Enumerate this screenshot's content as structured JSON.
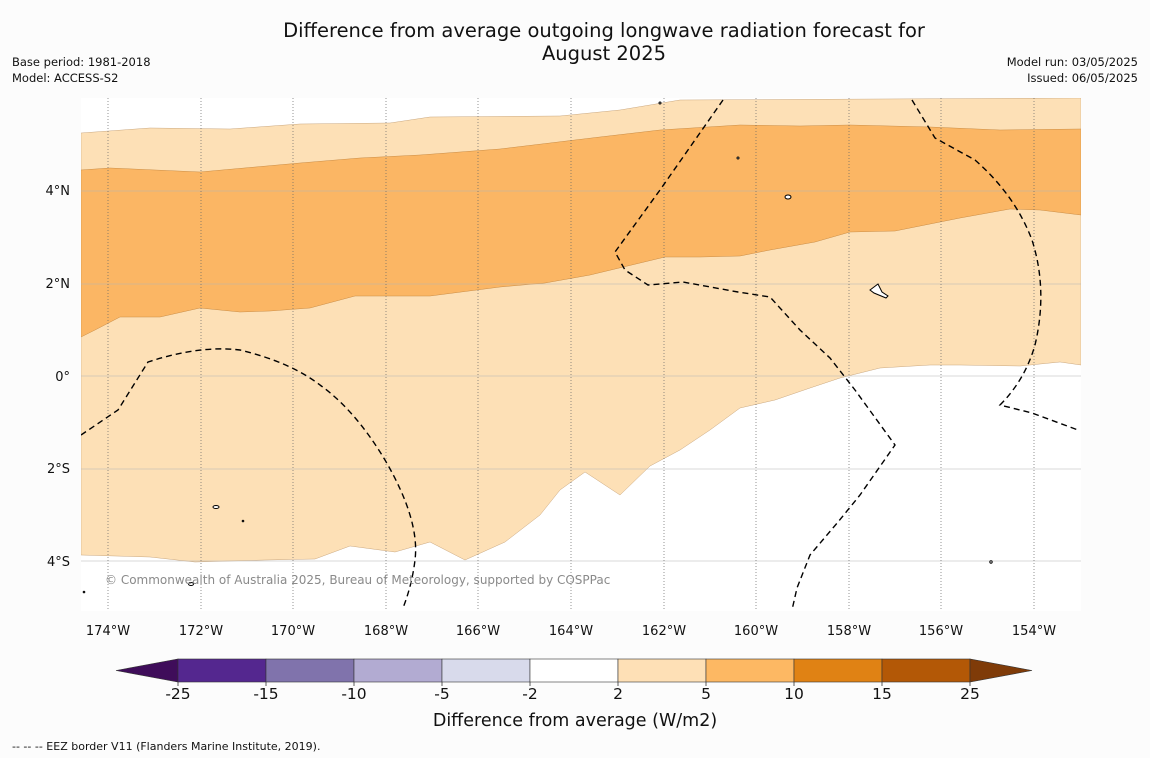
{
  "title": {
    "line1": "Difference from average outgoing longwave radiation forecast for",
    "line2": "August 2025"
  },
  "meta_left": {
    "base_period": "Base period: 1981-2018",
    "model": "Model: ACCESS-S2"
  },
  "meta_right": {
    "model_run": "Model run: 03/05/2025",
    "issued": "Issued: 06/05/2025"
  },
  "map": {
    "copyright": "© Commonwealth of Australia 2025, Bureau of Meteorology, supported by COSPPac",
    "longitude_labels": [
      "174°W",
      "172°W",
      "170°W",
      "168°W",
      "166°W",
      "164°W",
      "162°W",
      "160°W",
      "158°W",
      "156°W",
      "154°W"
    ],
    "latitude_labels": [
      "4°N",
      "2°N",
      "0°",
      "2°S",
      "4°S"
    ],
    "colors": {
      "land_neutral": "#ffffff",
      "band_2_5": "#fde0b6",
      "band_5_10": "#fbb664"
    }
  },
  "colorbar": {
    "title": "Difference from average (W/m2)",
    "tick_labels": [
      "-25",
      "-15",
      "-10",
      "-5",
      "-2",
      "2",
      "5",
      "10",
      "15",
      "25"
    ],
    "colors": [
      "#3f0d5a",
      "#54278f",
      "#8073ac",
      "#b2abd2",
      "#d8daeb",
      "#ffffff",
      "#fee0b6",
      "#fdb863",
      "#e08214",
      "#b35806",
      "#7f3b08"
    ]
  },
  "footnote": "--  --  -- EEZ border V11 (Flanders Marine Institute, 2019)."
}
